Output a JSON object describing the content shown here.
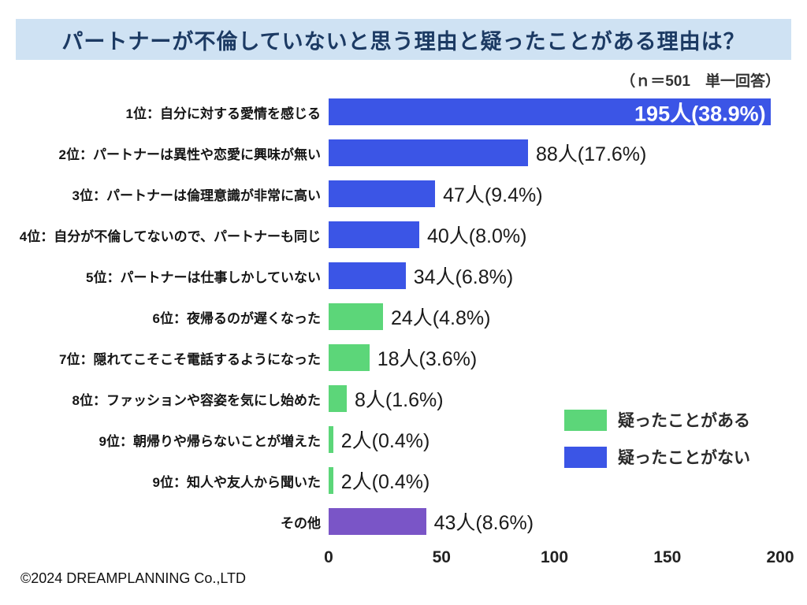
{
  "header": {
    "title": "パートナーが不倫していないと思う理由と疑ったことがある理由は？"
  },
  "note": "（ｎ＝501　単一回答）",
  "footer": "©2024 DREAMPLANNING Co.,LTD",
  "colors": {
    "suspected": "#5cd679",
    "not_suspected": "#3b55e6",
    "other": "#7a55c7"
  },
  "legend": [
    {
      "label": "疑ったことがある",
      "color_key": "suspected"
    },
    {
      "label": "疑ったことがない",
      "color_key": "not_suspected"
    }
  ],
  "chart_data": {
    "type": "bar",
    "orientation": "horizontal",
    "title": "パートナーが不倫していないと思う理由と疑ったことがある理由は？",
    "xlabel": "",
    "ylabel": "",
    "xlim": [
      0,
      200
    ],
    "xticks": [
      0,
      50,
      100,
      150,
      200
    ],
    "grid": false,
    "legend_position": "right-middle",
    "items": [
      {
        "category": "1位：自分に対する愛情を感じる",
        "value": 195,
        "label": "195人(38.9%)",
        "series": "疑ったことがない",
        "color_key": "not_suspected",
        "label_inside": true
      },
      {
        "category": "2位：パートナーは異性や恋愛に興味が無い",
        "value": 88,
        "label": "88人(17.6%)",
        "series": "疑ったことがない",
        "color_key": "not_suspected",
        "label_inside": false
      },
      {
        "category": "3位：パートナーは倫理意識が非常に高い",
        "value": 47,
        "label": "47人(9.4%)",
        "series": "疑ったことがない",
        "color_key": "not_suspected",
        "label_inside": false
      },
      {
        "category": "4位：自分が不倫してないので、パートナーも同じ",
        "value": 40,
        "label": "40人(8.0%)",
        "series": "疑ったことがない",
        "color_key": "not_suspected",
        "label_inside": false
      },
      {
        "category": "5位：パートナーは仕事しかしていない",
        "value": 34,
        "label": "34人(6.8%)",
        "series": "疑ったことがない",
        "color_key": "not_suspected",
        "label_inside": false
      },
      {
        "category": "6位：夜帰るのが遅くなった",
        "value": 24,
        "label": "24人(4.8%)",
        "series": "疑ったことがある",
        "color_key": "suspected",
        "label_inside": false
      },
      {
        "category": "7位：隠れてこそこそ電話するようになった",
        "value": 18,
        "label": "18人(3.6%)",
        "series": "疑ったことがある",
        "color_key": "suspected",
        "label_inside": false
      },
      {
        "category": "8位：ファッションや容姿を気にし始めた",
        "value": 8,
        "label": "8人(1.6%)",
        "series": "疑ったことがある",
        "color_key": "suspected",
        "label_inside": false
      },
      {
        "category": "9位：朝帰りや帰らないことが増えた",
        "value": 2,
        "label": "2人(0.4%)",
        "series": "疑ったことがある",
        "color_key": "suspected",
        "label_inside": false
      },
      {
        "category": "9位：知人や友人から聞いた",
        "value": 2,
        "label": "2人(0.4%)",
        "series": "疑ったことがある",
        "color_key": "suspected",
        "label_inside": false
      },
      {
        "category": "その他",
        "value": 43,
        "label": "43人(8.6%)",
        "series": "その他",
        "color_key": "other",
        "label_inside": false
      }
    ]
  }
}
